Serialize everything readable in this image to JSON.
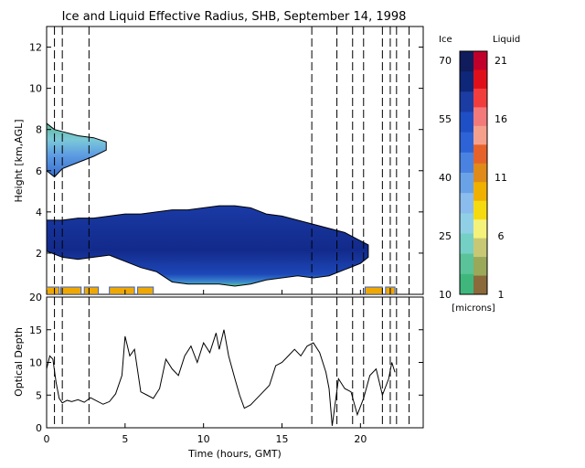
{
  "title": "Ice and Liquid Effective Radius, SHB, September 14, 1998",
  "colors": {
    "ice_scale": [
      "#101c5c",
      "#0f2778",
      "#1b3ca3",
      "#1f4fc6",
      "#2d63d6",
      "#4a82e2",
      "#6aa2e8",
      "#8bbcee",
      "#8fd0e6",
      "#74cfc4",
      "#5ac39a",
      "#3fb77c"
    ],
    "liquid_scale": [
      "#c0002a",
      "#e0101a",
      "#f23d3d",
      "#f37a7a",
      "#f5a08c",
      "#e6622b",
      "#e08a1a",
      "#f0b000",
      "#f6da10",
      "#f4f27a",
      "#c8c874",
      "#9aa85a",
      "#8a6a3a"
    ],
    "ground_flags": "#f0a800",
    "axis": "#000000"
  },
  "chart_data": [
    {
      "type": "heatmap",
      "title": "Ice and Liquid Effective Radius, SHB, September 14, 1998",
      "xlabel": "",
      "ylabel": "Height [km,AGL]",
      "xlim": [
        0,
        24
      ],
      "ylim": [
        0,
        13
      ],
      "xticks": [
        0,
        5,
        10,
        15,
        20
      ],
      "yticks": [
        2,
        4,
        6,
        8,
        10,
        12
      ],
      "grid": false,
      "vertical_dashed_lines_hours": [
        0.5,
        1.0,
        2.7,
        16.9,
        18.5,
        19.5,
        20.2,
        21.4,
        21.9,
        22.3,
        23.1
      ],
      "cloud_layers": [
        {
          "name": "upper",
          "x": [
            0.0,
            0.5,
            1.0,
            2.0,
            3.0,
            3.8
          ],
          "top_km": [
            8.3,
            8.0,
            7.9,
            7.7,
            7.6,
            7.4
          ],
          "base_km": [
            6.0,
            5.7,
            6.1,
            6.4,
            6.7,
            7.0
          ]
        },
        {
          "name": "lower",
          "x": [
            0,
            1,
            2,
            3,
            4,
            5,
            6,
            7,
            8,
            9,
            10,
            11,
            12,
            13,
            14,
            15,
            16,
            17,
            18,
            19,
            20,
            20.5
          ],
          "top_km": [
            3.6,
            3.6,
            3.7,
            3.7,
            3.8,
            3.9,
            3.9,
            4.0,
            4.1,
            4.1,
            4.2,
            4.3,
            4.3,
            4.2,
            3.9,
            3.8,
            3.6,
            3.4,
            3.2,
            3.0,
            2.6,
            2.4
          ],
          "base_km": [
            2.1,
            1.8,
            1.7,
            1.8,
            1.9,
            1.6,
            1.3,
            1.1,
            0.6,
            0.5,
            0.5,
            0.5,
            0.4,
            0.5,
            0.7,
            0.8,
            0.9,
            0.8,
            0.9,
            1.2,
            1.5,
            1.8
          ]
        }
      ],
      "ground_liquid_flags": [
        {
          "x_start": 0.0,
          "x_end": 0.8
        },
        {
          "x_start": 0.9,
          "x_end": 2.2
        },
        {
          "x_start": 2.4,
          "x_end": 3.3
        },
        {
          "x_start": 4.0,
          "x_end": 5.6
        },
        {
          "x_start": 5.8,
          "x_end": 6.8
        },
        {
          "x_start": 20.3,
          "x_end": 21.4
        },
        {
          "x_start": 21.6,
          "x_end": 22.2
        }
      ]
    },
    {
      "type": "line",
      "xlabel": "Time (hours, GMT)",
      "ylabel": "Optical Depth",
      "xlim": [
        0,
        24
      ],
      "ylim": [
        0,
        20
      ],
      "xticks": [
        0,
        5,
        10,
        15,
        20
      ],
      "yticks": [
        0,
        5,
        10,
        15,
        20
      ],
      "grid": false,
      "vertical_dashed_lines_hours": [
        0.5,
        1.0,
        2.7,
        16.9,
        18.5,
        19.5,
        20.2,
        21.4,
        21.9,
        22.3,
        23.1
      ],
      "series": [
        {
          "x": [
            0.0,
            0.2,
            0.4,
            0.6,
            0.8,
            1.0,
            1.3,
            1.6,
            2.0,
            2.4,
            2.8,
            3.2,
            3.6,
            4.0,
            4.4,
            4.8,
            5.0,
            5.3,
            5.6,
            6.0,
            6.4,
            6.8,
            7.2,
            7.6,
            8.0,
            8.4,
            8.8,
            9.2,
            9.6,
            10.0,
            10.4,
            10.8,
            11.0,
            11.3,
            11.6,
            12.0,
            12.3,
            12.6,
            13.0,
            13.4,
            13.8,
            14.2,
            14.6,
            15.0,
            15.4,
            15.8,
            16.2,
            16.6,
            17.0,
            17.4,
            17.8,
            18.0,
            18.2,
            18.6,
            19.0,
            19.4,
            19.8,
            20.2,
            20.6,
            21.0,
            21.4,
            21.8,
            22.0,
            22.2
          ],
          "y": [
            9.0,
            11.0,
            10.5,
            7.0,
            4.5,
            3.8,
            4.2,
            4.0,
            4.3,
            3.9,
            4.6,
            4.1,
            3.6,
            4.0,
            5.2,
            8.0,
            14.0,
            11.0,
            12.0,
            5.5,
            5.0,
            4.5,
            6.0,
            10.5,
            9.0,
            8.0,
            11.0,
            12.5,
            10.0,
            13.0,
            11.5,
            14.5,
            12.0,
            15.0,
            11.0,
            7.5,
            5.0,
            3.0,
            3.5,
            4.5,
            5.5,
            6.5,
            9.5,
            10.0,
            11.0,
            12.0,
            11.0,
            12.5,
            13.0,
            11.5,
            8.5,
            6.0,
            0.3,
            7.5,
            6.0,
            5.5,
            2.0,
            4.5,
            8.0,
            9.0,
            5.0,
            7.5,
            10.0,
            8.5
          ]
        }
      ]
    }
  ],
  "colorbar": {
    "ice_label": "Ice",
    "liquid_label": "Liquid",
    "ice_ticks": [
      "70",
      "55",
      "40",
      "25",
      "10"
    ],
    "liquid_ticks": [
      "21",
      "16",
      "11",
      "6",
      "1"
    ],
    "units": "[microns]"
  },
  "axis_labels": {
    "top_ylabel": "Height [km,AGL]",
    "bottom_ylabel": "Optical Depth",
    "bottom_xlabel": "Time (hours, GMT)"
  }
}
